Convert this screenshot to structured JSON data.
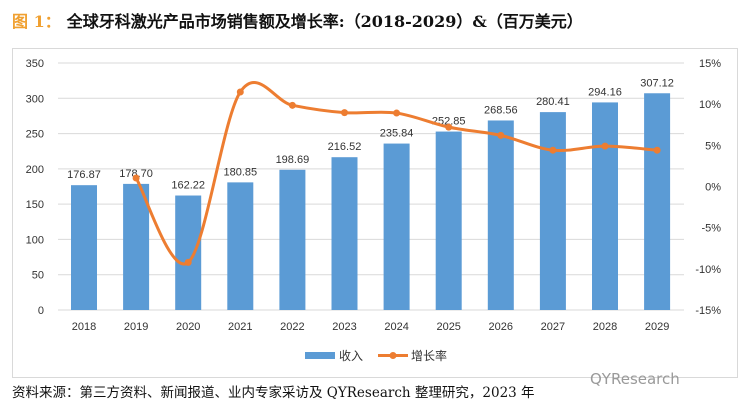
{
  "title": {
    "figure_label": "图 1：",
    "text": "全球牙科激光产品市场销售额及增长率:（2018-2029）&（百万美元）"
  },
  "source": "资料来源：第三方资料、新闻报道、业内专家采访及 QYResearch 整理研究，2023 年",
  "watermark": "QYResearch",
  "chart_data": {
    "type": "bar+line",
    "categories": [
      "2018",
      "2019",
      "2020",
      "2021",
      "2022",
      "2023",
      "2024",
      "2025",
      "2026",
      "2027",
      "2028",
      "2029"
    ],
    "series": [
      {
        "name": "收入",
        "type": "bar",
        "axis": "left",
        "color": "#5b9bd5",
        "values": [
          176.87,
          178.7,
          162.22,
          180.85,
          198.69,
          216.52,
          235.84,
          252.85,
          268.56,
          280.41,
          294.16,
          307.12
        ],
        "labels": [
          "176.87",
          "178.70",
          "162.22",
          "180.85",
          "198.69",
          "216.52",
          "235.84",
          "252.85",
          "268.56",
          "280.41",
          "294.16",
          "307.12"
        ]
      },
      {
        "name": "增长率",
        "type": "line",
        "axis": "right",
        "color": "#ed7d31",
        "smooth": true,
        "values": [
          null,
          1.03,
          -9.22,
          11.48,
          9.86,
          8.97,
          8.92,
          7.21,
          6.21,
          4.41,
          4.9,
          4.41
        ]
      }
    ],
    "left_axis": {
      "ylim": [
        0,
        350
      ],
      "ticks": [
        "0",
        "50",
        "100",
        "150",
        "200",
        "250",
        "300",
        "350"
      ]
    },
    "right_axis": {
      "ylim": [
        -15,
        15
      ],
      "ticks": [
        "-15%",
        "-10%",
        "-5%",
        "0%",
        "5%",
        "10%",
        "15%"
      ]
    },
    "grid": true,
    "legend": "bottom"
  }
}
